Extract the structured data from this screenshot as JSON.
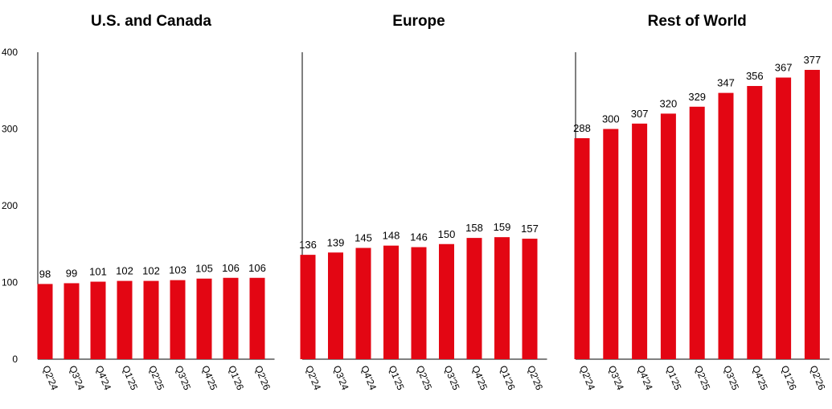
{
  "chart_data": {
    "type": "bar",
    "ylim": [
      0,
      400
    ],
    "yticks": [
      0,
      100,
      200,
      300,
      400
    ],
    "grid": false,
    "bar_color": "#e30613",
    "axis_color": "#000000",
    "panels": [
      {
        "title": "U.S. and Canada",
        "categories": [
          "Q2'24",
          "Q3'24",
          "Q4'24",
          "Q1'25",
          "Q2'25",
          "Q3'25",
          "Q4'25",
          "Q1'26",
          "Q2'26"
        ],
        "values": [
          98,
          99,
          101,
          102,
          102,
          103,
          105,
          106,
          106
        ]
      },
      {
        "title": "Europe",
        "categories": [
          "Q2'24",
          "Q3'24",
          "Q4'24",
          "Q1'25",
          "Q2'25",
          "Q3'25",
          "Q4'25",
          "Q1'26",
          "Q2'26"
        ],
        "values": [
          136,
          139,
          145,
          148,
          146,
          150,
          158,
          159,
          157
        ]
      },
      {
        "title": "Rest of World",
        "categories": [
          "Q2'24",
          "Q3'24",
          "Q4'24",
          "Q1'25",
          "Q2'25",
          "Q3'25",
          "Q4'25",
          "Q1'26",
          "Q2'26"
        ],
        "values": [
          288,
          300,
          307,
          320,
          329,
          347,
          356,
          367,
          377
        ]
      }
    ]
  }
}
